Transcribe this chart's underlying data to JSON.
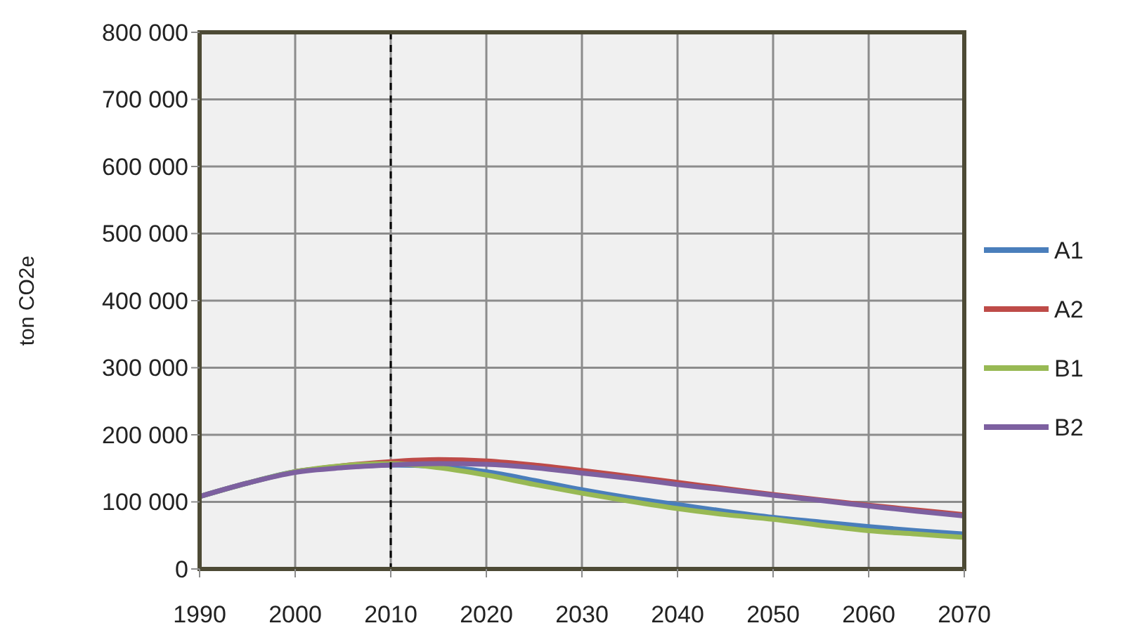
{
  "chart_data": {
    "type": "line",
    "ylabel": "ton CO2e",
    "x": [
      1990,
      1995,
      2000,
      2005,
      2010,
      2015,
      2020,
      2025,
      2030,
      2035,
      2040,
      2045,
      2050,
      2055,
      2060,
      2065,
      2070
    ],
    "series": [
      {
        "name": "A1",
        "color": "#4a7ebb",
        "values": [
          108000,
          128000,
          145000,
          152000,
          155000,
          153000,
          145000,
          132000,
          118000,
          106000,
          96000,
          86000,
          77000,
          70000,
          63000,
          57000,
          52000
        ]
      },
      {
        "name": "A2",
        "color": "#be4b48",
        "values": [
          null,
          null,
          145000,
          154000,
          160000,
          163000,
          161000,
          155000,
          147000,
          138000,
          129000,
          120000,
          111000,
          103000,
          95000,
          88000,
          81000
        ]
      },
      {
        "name": "B1",
        "color": "#98b954",
        "values": [
          108000,
          128000,
          145000,
          154000,
          157000,
          151000,
          140000,
          126000,
          113000,
          101000,
          90000,
          81000,
          74000,
          65000,
          57000,
          52000,
          47000
        ]
      },
      {
        "name": "B2",
        "color": "#7d60a0",
        "values": [
          108000,
          128000,
          144000,
          151000,
          155000,
          157000,
          156000,
          151000,
          143000,
          135000,
          126000,
          118000,
          110000,
          102000,
          94000,
          86000,
          79000
        ]
      }
    ],
    "xlim": [
      1990,
      2070
    ],
    "xticks": [
      1990,
      2000,
      2010,
      2020,
      2030,
      2040,
      2050,
      2060,
      2070
    ],
    "ylim": [
      0,
      800000
    ],
    "yticks": [
      {
        "value": 0,
        "label": "0"
      },
      {
        "value": 100000,
        "label": "100 000"
      },
      {
        "value": 200000,
        "label": "200 000"
      },
      {
        "value": 300000,
        "label": "300 000"
      },
      {
        "value": 400000,
        "label": "400 000"
      },
      {
        "value": 500000,
        "label": "500 000"
      },
      {
        "value": 600000,
        "label": "600 000"
      },
      {
        "value": 700000,
        "label": "700 000"
      },
      {
        "value": 800000,
        "label": "800 000"
      }
    ],
    "grid": true,
    "legend": "right",
    "line_style": "solid",
    "marker": "none",
    "ref_lines": [
      {
        "axis": "x",
        "value": 2010,
        "color": "#000000",
        "line_style": "dashed"
      }
    ]
  }
}
